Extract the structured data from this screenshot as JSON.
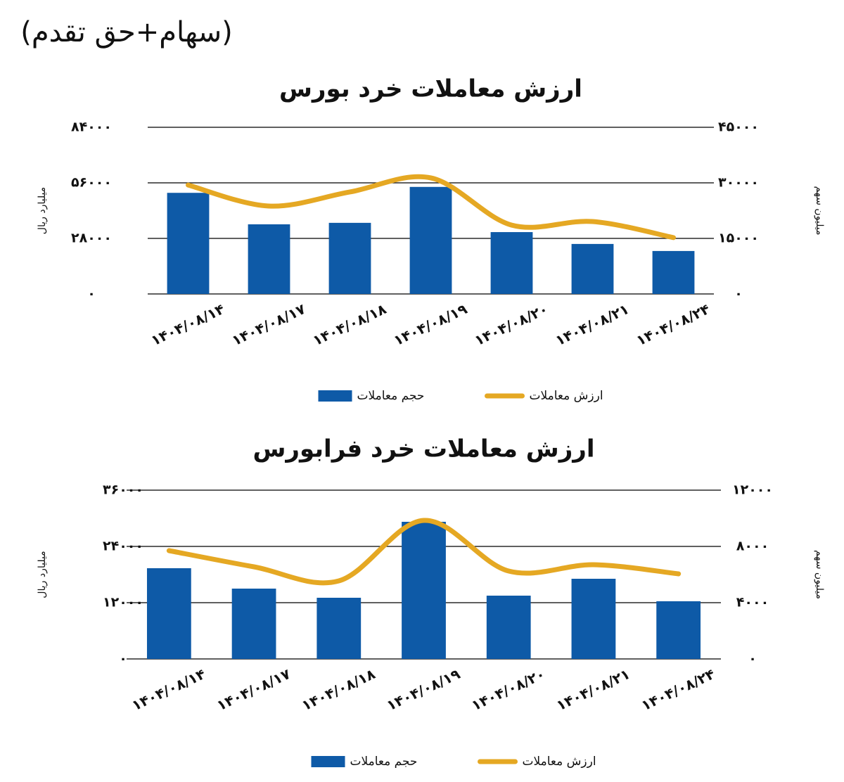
{
  "header": {
    "title": "(سهام+حق تقدم)"
  },
  "chart_data": [
    {
      "type": "bar-line",
      "title": "ارزش معاملات خرد بورس",
      "categories": [
        "۱۴۰۴/۰۸/۱۴",
        "۱۴۰۴/۰۸/۱۷",
        "۱۴۰۴/۰۸/۱۸",
        "۱۴۰۴/۰۸/۱۹",
        "۱۴۰۴/۰۸/۲۰",
        "۱۴۰۴/۰۸/۲۱",
        "۱۴۰۴/۰۸/۲۴"
      ],
      "ylabel": "میلیارد ریال",
      "y2label": "میلیون سهم",
      "ylim": [
        0,
        84000
      ],
      "yticks": [
        {
          "value": 0,
          "label": "۰"
        },
        {
          "value": 28000,
          "label": "۲۸۰۰۰"
        },
        {
          "value": 56000,
          "label": "۵۶۰۰۰"
        },
        {
          "value": 84000,
          "label": "۸۴۰۰۰"
        }
      ],
      "y2lim": [
        0,
        45000
      ],
      "y2ticks": [
        {
          "value": 0,
          "label": "۰"
        },
        {
          "value": 15000,
          "label": "۱۵۰۰۰"
        },
        {
          "value": 30000,
          "label": "۳۰۰۰۰"
        },
        {
          "value": 45000,
          "label": "۴۵۰۰۰"
        }
      ],
      "grid": true,
      "smooth": true,
      "series": [
        {
          "name": "حجم معاملات",
          "kind": "bar",
          "axis": "y2",
          "color": "#0e5aa7",
          "values": [
            27300,
            18800,
            19200,
            28900,
            16700,
            13500,
            11600
          ]
        },
        {
          "name": "ارزش معاملات",
          "kind": "line",
          "axis": "y",
          "color": "#e5a823",
          "values": [
            54900,
            44300,
            51400,
            58500,
            34700,
            36500,
            28400
          ]
        }
      ]
    },
    {
      "type": "bar-line",
      "title": "ارزش معاملات خرد فرابورس",
      "categories": [
        "۱۴۰۴/۰۸/۱۴",
        "۱۴۰۴/۰۸/۱۷",
        "۱۴۰۴/۰۸/۱۸",
        "۱۴۰۴/۰۸/۱۹",
        "۱۴۰۴/۰۸/۲۰",
        "۱۴۰۴/۰۸/۲۱",
        "۱۴۰۴/۰۸/۲۴"
      ],
      "ylabel": "میلیارد ریال",
      "y2label": "میلیون سهم",
      "ylim": [
        0,
        36000
      ],
      "yticks": [
        {
          "value": 0,
          "label": "۰"
        },
        {
          "value": 12000,
          "label": "۱۲۰۰۰"
        },
        {
          "value": 24000,
          "label": "۲۴۰۰۰"
        },
        {
          "value": 36000,
          "label": "۳۶۰۰۰"
        }
      ],
      "y2lim": [
        0,
        12000
      ],
      "y2ticks": [
        {
          "value": 0,
          "label": "۰"
        },
        {
          "value": 4000,
          "label": "۴۰۰۰"
        },
        {
          "value": 8000,
          "label": "۸۰۰۰"
        },
        {
          "value": 12000,
          "label": "۱۲۰۰۰"
        }
      ],
      "grid": true,
      "smooth": true,
      "series": [
        {
          "name": "حجم معاملات",
          "kind": "bar",
          "axis": "y2",
          "color": "#0e5aa7",
          "values": [
            6450,
            5000,
            4350,
            9750,
            4500,
            5700,
            4100
          ]
        },
        {
          "name": "ارزش معاملات",
          "kind": "line",
          "axis": "y",
          "color": "#e5a823",
          "values": [
            23100,
            19650,
            16650,
            29550,
            18750,
            20100,
            18150
          ]
        }
      ]
    }
  ]
}
